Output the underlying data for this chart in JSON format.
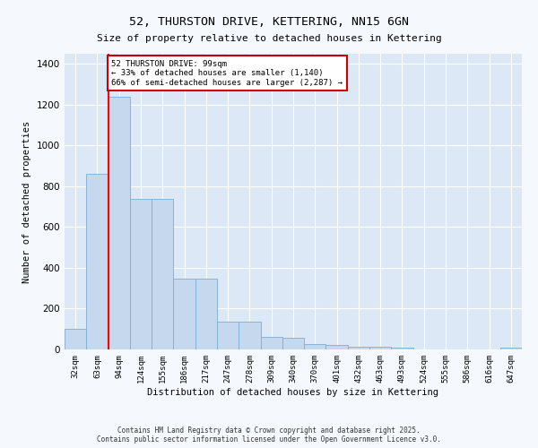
{
  "title1": "52, THURSTON DRIVE, KETTERING, NN15 6GN",
  "title2": "Size of property relative to detached houses in Kettering",
  "xlabel": "Distribution of detached houses by size in Kettering",
  "ylabel": "Number of detached properties",
  "categories": [
    "32sqm",
    "63sqm",
    "94sqm",
    "124sqm",
    "155sqm",
    "186sqm",
    "217sqm",
    "247sqm",
    "278sqm",
    "309sqm",
    "340sqm",
    "370sqm",
    "401sqm",
    "432sqm",
    "463sqm",
    "493sqm",
    "524sqm",
    "555sqm",
    "586sqm",
    "616sqm",
    "647sqm"
  ],
  "values": [
    100,
    860,
    1240,
    740,
    740,
    345,
    345,
    135,
    135,
    60,
    55,
    27,
    22,
    15,
    15,
    10,
    0,
    0,
    0,
    0,
    10
  ],
  "bar_color": "#c5d8ed",
  "bar_edge_color": "#7bafd4",
  "red_line_index": 2,
  "annotation_text": "52 THURSTON DRIVE: 99sqm\n← 33% of detached houses are smaller (1,140)\n66% of semi-detached houses are larger (2,287) →",
  "annotation_box_color": "#ffffff",
  "annotation_box_edge": "#cc0000",
  "ylim": [
    0,
    1450
  ],
  "yticks": [
    0,
    200,
    400,
    600,
    800,
    1000,
    1200,
    1400
  ],
  "fig_bg_color": "#f5f8fc",
  "plot_bg_color": "#dce8f5",
  "grid_color": "#ffffff",
  "footer1": "Contains HM Land Registry data © Crown copyright and database right 2025.",
  "footer2": "Contains public sector information licensed under the Open Government Licence v3.0."
}
